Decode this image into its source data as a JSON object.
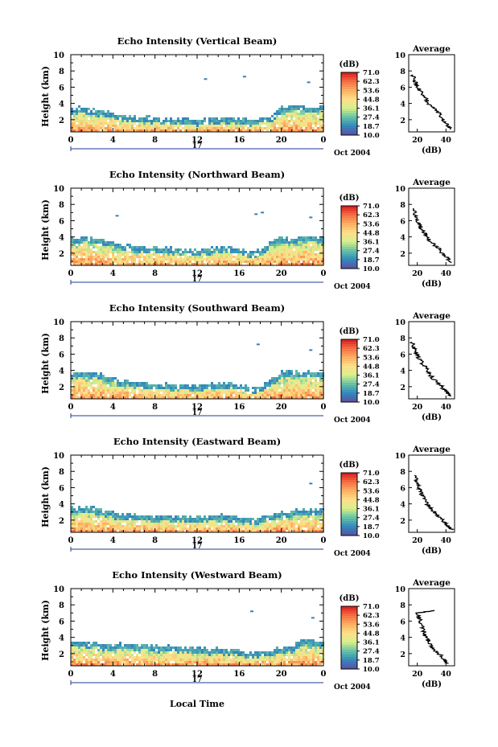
{
  "figure": {
    "bottom_label": "Local Time",
    "colorbar_unit": "(dB)",
    "colorbar_ticks": [
      "71.0",
      "62.3",
      "53.6",
      "44.8",
      "36.1",
      "27.4",
      "18.7",
      "10.0"
    ],
    "colorbar_colors": [
      "#d7191c",
      "#f46d43",
      "#fdae61",
      "#fee08b",
      "#d9ef8b",
      "#66c2a5",
      "#3288bd",
      "#5e4fa2"
    ],
    "date_day": "17",
    "date_suffix": "Oct 2004",
    "profile_title": "Average",
    "profile_xlabel": "(dB)"
  },
  "chart_data": [
    {
      "type": "heatmap",
      "title": "Echo Intensity (Vertical Beam)",
      "ylabel": "Height (km)",
      "xlabel": "Local Time",
      "x_ticks": [
        "0",
        "4",
        "8",
        "12",
        "16",
        "20",
        "0"
      ],
      "y_ticks": [
        "2",
        "4",
        "6",
        "8",
        "10"
      ],
      "xlim": [
        0,
        24
      ],
      "ylim": [
        0.5,
        10
      ],
      "color_scale": {
        "min": 10.0,
        "max": 71.0,
        "unit": "dB"
      },
      "cloud_top_km": [
        3.3,
        3.4,
        3.2,
        3.0,
        2.6,
        2.4,
        2.3,
        2.2,
        2.1,
        2.1,
        2.0,
        2.0,
        1.9,
        2.0,
        2.1,
        2.2,
        2.1,
        1.9,
        2.0,
        2.4,
        3.4,
        3.6,
        3.5,
        3.4,
        3.6
      ],
      "aloft_echoes": [
        {
          "time": 12.8,
          "height_km": 7.0
        },
        {
          "time": 16.5,
          "height_km": 7.3
        },
        {
          "time": 22.6,
          "height_km": 6.6
        }
      ],
      "profile": {
        "title": "Average",
        "xlabel": "(dB)",
        "x_ticks": [
          "20",
          "40"
        ],
        "y_ticks": [
          "2",
          "4",
          "6",
          "8",
          "10"
        ],
        "xlim": [
          14,
          46
        ],
        "ylim": [
          0.5,
          10
        ],
        "height_km": [
          0.8,
          1.2,
          1.6,
          2.0,
          2.5,
          3.0,
          3.5,
          4.0,
          4.5,
          5.0,
          5.5,
          6.0,
          6.5,
          7.0,
          7.5
        ],
        "value_db": [
          44,
          42,
          40,
          38,
          36,
          34,
          31,
          28,
          26,
          24,
          22,
          20,
          19,
          18,
          17
        ]
      }
    },
    {
      "type": "heatmap",
      "title": "Echo Intensity (Northward Beam)",
      "ylabel": "Height (km)",
      "xlabel": "Local Time",
      "x_ticks": [
        "0",
        "4",
        "8",
        "12",
        "16",
        "20",
        "0"
      ],
      "y_ticks": [
        "2",
        "4",
        "6",
        "8",
        "10"
      ],
      "xlim": [
        0,
        24
      ],
      "ylim": [
        0.5,
        10
      ],
      "color_scale": {
        "min": 10.0,
        "max": 71.0,
        "unit": "dB"
      },
      "cloud_top_km": [
        3.8,
        3.9,
        3.7,
        3.5,
        3.1,
        2.9,
        2.8,
        2.6,
        2.5,
        2.5,
        2.4,
        2.4,
        2.3,
        2.5,
        2.6,
        2.6,
        2.3,
        2.0,
        2.3,
        3.5,
        3.8,
        3.7,
        3.9,
        3.8,
        3.9
      ],
      "aloft_echoes": [
        {
          "time": 4.4,
          "height_km": 6.6
        },
        {
          "time": 17.6,
          "height_km": 6.8
        },
        {
          "time": 18.2,
          "height_km": 7.0
        },
        {
          "time": 22.8,
          "height_km": 6.4
        }
      ],
      "profile": {
        "title": "Average",
        "xlabel": "(dB)",
        "x_ticks": [
          "20",
          "40"
        ],
        "y_ticks": [
          "2",
          "4",
          "6",
          "8",
          "10"
        ],
        "xlim": [
          14,
          46
        ],
        "ylim": [
          0.5,
          10
        ],
        "height_km": [
          0.8,
          1.2,
          1.6,
          2.0,
          2.5,
          3.0,
          3.5,
          4.0,
          4.5,
          5.0,
          5.5,
          6.0,
          6.5,
          7.0,
          7.5
        ],
        "value_db": [
          44,
          42,
          40,
          37,
          35,
          32,
          29,
          27,
          25,
          23,
          21,
          20,
          19,
          18,
          17
        ]
      }
    },
    {
      "type": "heatmap",
      "title": "Echo Intensity (Southward Beam)",
      "ylabel": "Height (km)",
      "xlabel": "Local Time",
      "x_ticks": [
        "0",
        "4",
        "8",
        "12",
        "16",
        "20",
        "0"
      ],
      "y_ticks": [
        "2",
        "4",
        "6",
        "8",
        "10"
      ],
      "xlim": [
        0,
        24
      ],
      "ylim": [
        0.5,
        10
      ],
      "color_scale": {
        "min": 10.0,
        "max": 71.0,
        "unit": "dB"
      },
      "cloud_top_km": [
        3.6,
        3.7,
        3.5,
        3.3,
        2.9,
        2.6,
        2.4,
        2.3,
        2.2,
        2.2,
        2.1,
        2.1,
        2.0,
        2.2,
        2.3,
        2.3,
        2.0,
        1.8,
        2.0,
        2.8,
        3.9,
        3.8,
        3.7,
        3.6,
        3.8
      ],
      "aloft_echoes": [
        {
          "time": 17.8,
          "height_km": 7.2
        },
        {
          "time": 22.8,
          "height_km": 6.5
        }
      ],
      "profile": {
        "title": "Average",
        "xlabel": "(dB)",
        "x_ticks": [
          "20",
          "40"
        ],
        "y_ticks": [
          "2",
          "4",
          "6",
          "8",
          "10"
        ],
        "xlim": [
          14,
          46
        ],
        "ylim": [
          0.5,
          10
        ],
        "height_km": [
          0.8,
          1.2,
          1.6,
          2.0,
          2.5,
          3.0,
          3.5,
          4.0,
          4.5,
          5.0,
          5.5,
          6.0,
          6.5,
          7.0,
          7.5
        ],
        "value_db": [
          43,
          41,
          39,
          37,
          34,
          31,
          29,
          27,
          25,
          23,
          21,
          20,
          18,
          17,
          16
        ]
      }
    },
    {
      "type": "heatmap",
      "title": "Echo Intensity (Eastward Beam)",
      "ylabel": "Height (km)",
      "xlabel": "Local Time",
      "x_ticks": [
        "0",
        "4",
        "8",
        "12",
        "16",
        "20",
        "0"
      ],
      "y_ticks": [
        "2",
        "4",
        "6",
        "8",
        "10"
      ],
      "xlim": [
        0,
        24
      ],
      "ylim": [
        0.5,
        10
      ],
      "color_scale": {
        "min": 10.0,
        "max": 71.0,
        "unit": "dB"
      },
      "cloud_top_km": [
        3.5,
        3.6,
        3.4,
        3.2,
        2.8,
        2.6,
        2.5,
        2.5,
        2.4,
        2.4,
        2.3,
        2.3,
        2.2,
        2.4,
        2.5,
        2.4,
        2.2,
        2.0,
        2.2,
        2.6,
        2.9,
        3.0,
        3.1,
        3.2,
        3.4
      ],
      "aloft_echoes": [
        {
          "time": 22.8,
          "height_km": 6.5
        }
      ],
      "profile": {
        "title": "Average",
        "xlabel": "(dB)",
        "x_ticks": [
          "20",
          "40"
        ],
        "y_ticks": [
          "2",
          "4",
          "6",
          "8",
          "10"
        ],
        "xlim": [
          14,
          46
        ],
        "ylim": [
          0.5,
          10
        ],
        "height_km": [
          0.8,
          1.2,
          1.6,
          2.0,
          2.5,
          3.0,
          3.5,
          4.0,
          4.5,
          5.0,
          5.5,
          6.0,
          6.5,
          7.0,
          7.5
        ],
        "value_db": [
          44,
          42,
          40,
          38,
          35,
          32,
          29,
          27,
          26,
          24,
          22,
          21,
          20,
          19,
          18
        ]
      }
    },
    {
      "type": "heatmap",
      "title": "Echo Intensity (Westward Beam)",
      "ylabel": "Height (km)",
      "xlabel": "Local Time",
      "x_ticks": [
        "0",
        "4",
        "8",
        "12",
        "16",
        "20",
        "0"
      ],
      "y_ticks": [
        "2",
        "4",
        "6",
        "8",
        "10"
      ],
      "xlim": [
        0,
        24
      ],
      "ylim": [
        0.5,
        10
      ],
      "color_scale": {
        "min": 10.0,
        "max": 71.0,
        "unit": "dB"
      },
      "cloud_top_km": [
        3.3,
        3.4,
        3.2,
        3.0,
        3.0,
        3.1,
        3.0,
        2.9,
        2.8,
        2.8,
        2.7,
        2.7,
        2.6,
        2.5,
        2.5,
        2.4,
        2.2,
        2.0,
        2.1,
        2.3,
        2.6,
        2.8,
        3.6,
        3.5,
        3.3
      ],
      "aloft_echoes": [
        {
          "time": 17.2,
          "height_km": 7.2
        },
        {
          "time": 23.0,
          "height_km": 6.4
        }
      ],
      "profile": {
        "title": "Average",
        "xlabel": "(dB)",
        "x_ticks": [
          "20",
          "40"
        ],
        "y_ticks": [
          "2",
          "4",
          "6",
          "8",
          "10"
        ],
        "xlim": [
          14,
          46
        ],
        "ylim": [
          0.5,
          10
        ],
        "height_km": [
          0.8,
          1.2,
          1.6,
          2.0,
          2.5,
          3.0,
          3.5,
          4.0,
          4.5,
          5.0,
          5.5,
          6.0,
          6.5,
          7.0,
          7.3
        ],
        "value_db": [
          41,
          39,
          37,
          35,
          32,
          30,
          28,
          26,
          25,
          24,
          23,
          22,
          21,
          20,
          32
        ]
      }
    }
  ]
}
